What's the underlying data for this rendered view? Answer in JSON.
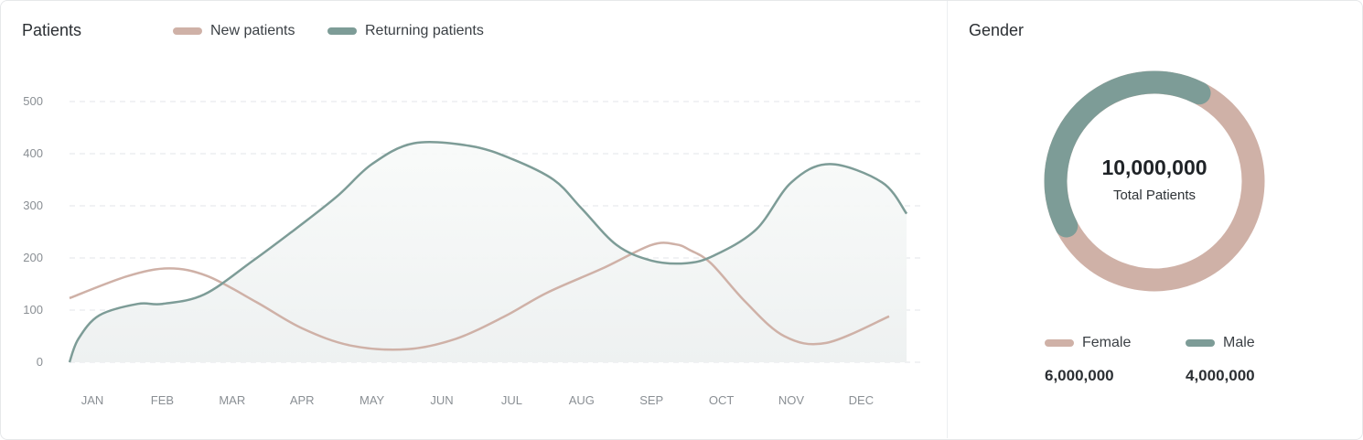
{
  "patients_panel": {
    "title": "Patients",
    "legend": [
      {
        "label": "New patients",
        "color": "#cfb1a7"
      },
      {
        "label": "Returning patients",
        "color": "#7d9c97"
      }
    ]
  },
  "gender_panel": {
    "title": "Gender",
    "total_value": "10,000,000",
    "total_label": "Total Patients",
    "segments": [
      {
        "label": "Female",
        "value_text": "6,000,000",
        "value": 6000000,
        "color": "#cfb1a7"
      },
      {
        "label": "Male",
        "value_text": "4,000,000",
        "value": 4000000,
        "color": "#7d9c97"
      }
    ]
  },
  "chart_data": [
    {
      "type": "line",
      "categories": [
        "JAN",
        "FEB",
        "MAR",
        "APR",
        "MAY",
        "JUN",
        "JUL",
        "AUG",
        "SEP",
        "OCT",
        "NOV",
        "DEC"
      ],
      "yticks": [
        0,
        100,
        200,
        300,
        400,
        500
      ],
      "ylim": [
        0,
        500
      ],
      "grid": true,
      "legend_position": "top",
      "series": [
        {
          "name": "New patients",
          "color": "#cfb1a7",
          "x": [
            -0.33,
            0.5,
            1.1,
            1.65,
            2.35,
            3.0,
            3.7,
            4.5,
            5.2,
            5.9,
            6.5,
            7.3,
            8.0,
            8.35,
            8.55,
            8.85,
            9.35,
            9.9,
            10.5,
            11.4
          ],
          "values": [
            123,
            165,
            180,
            165,
            115,
            65,
            32,
            25,
            45,
            88,
            133,
            180,
            225,
            226,
            215,
            190,
            115,
            50,
            37,
            88
          ]
        },
        {
          "name": "Returning patients",
          "color": "#7d9c97",
          "x": [
            -0.33,
            -0.2,
            0.1,
            0.65,
            1.0,
            1.6,
            2.3,
            2.9,
            3.5,
            4.0,
            4.6,
            5.4,
            6.0,
            6.6,
            7.0,
            7.5,
            8.0,
            8.5,
            8.9,
            9.5,
            10.0,
            10.55,
            11.3,
            11.65
          ],
          "values": [
            0,
            45,
            90,
            112,
            112,
            130,
            195,
            255,
            318,
            380,
            420,
            415,
            390,
            350,
            295,
            225,
            195,
            190,
            205,
            255,
            345,
            380,
            345,
            285
          ]
        }
      ]
    },
    {
      "type": "pie",
      "title": "Gender",
      "labels": [
        "Female",
        "Male"
      ],
      "values": [
        6000000,
        4000000
      ],
      "total": 10000000
    }
  ]
}
